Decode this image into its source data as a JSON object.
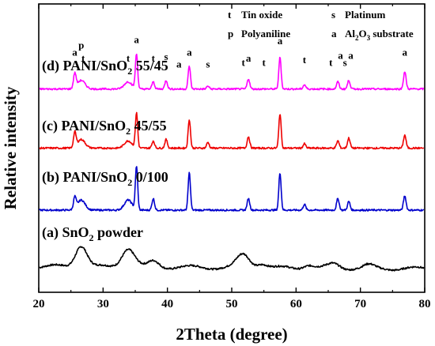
{
  "chart_data": {
    "type": "line",
    "xlabel": "2Theta (degree)",
    "ylabel": "Relative intensity",
    "xlim": [
      20,
      80
    ],
    "xticks": [
      "20",
      "30",
      "40",
      "50",
      "60",
      "70",
      "80"
    ],
    "legend": {
      "placement": "top-right",
      "entries": [
        {
          "symbol": "t",
          "text": "Tin oxide"
        },
        {
          "symbol": "s",
          "text": "Platinum"
        },
        {
          "symbol": "p",
          "text": "Polyaniline"
        },
        {
          "symbol": "a",
          "text": "Al",
          "sub": "2",
          "text2": "O",
          "sub2": "3",
          "text3": " substrate"
        }
      ]
    },
    "series": [
      {
        "name": "(a) SnO2 powder",
        "label_parts": [
          "(a) SnO",
          "2",
          " powder"
        ],
        "color": "#000000",
        "baseline": 0.09,
        "peaks": [
          [
            26.6,
            0.075,
            0.9
          ],
          [
            33.9,
            0.065,
            1.0
          ],
          [
            37.9,
            0.02,
            0.8
          ],
          [
            51.8,
            0.045,
            1.0
          ],
          [
            54.7,
            0.015,
            0.8
          ],
          [
            61.9,
            0.012,
            0.8
          ],
          [
            65.9,
            0.015,
            0.9
          ],
          [
            71.3,
            0.01,
            0.8
          ]
        ]
      },
      {
        "name": "(b) PANI/SnO2 0/100",
        "label_parts": [
          "(b) PANI/SnO",
          "2",
          " 0/100"
        ],
        "color": "#0000cc",
        "baseline": 0.285,
        "peaks": [
          [
            25.6,
            0.04,
            0.2
          ],
          [
            26.6,
            0.035,
            0.6
          ],
          [
            33.9,
            0.035,
            0.6
          ],
          [
            35.2,
            0.15,
            0.18
          ],
          [
            37.8,
            0.04,
            0.2
          ],
          [
            43.4,
            0.13,
            0.18
          ],
          [
            52.6,
            0.04,
            0.2
          ],
          [
            57.5,
            0.13,
            0.18
          ],
          [
            61.3,
            0.02,
            0.2
          ],
          [
            66.5,
            0.04,
            0.2
          ],
          [
            68.2,
            0.03,
            0.2
          ],
          [
            76.9,
            0.05,
            0.2
          ]
        ]
      },
      {
        "name": "(c) PANI/SnO2 45/55",
        "label_parts": [
          "(c) PANI/SnO",
          "2",
          " 45/55"
        ],
        "color": "#ee0000",
        "baseline": 0.5,
        "peaks": [
          [
            25.6,
            0.05,
            0.2
          ],
          [
            26.6,
            0.03,
            0.6
          ],
          [
            33.9,
            0.025,
            0.6
          ],
          [
            35.2,
            0.12,
            0.18
          ],
          [
            37.8,
            0.025,
            0.2
          ],
          [
            39.8,
            0.03,
            0.2
          ],
          [
            43.4,
            0.1,
            0.18
          ],
          [
            46.3,
            0.02,
            0.2
          ],
          [
            52.6,
            0.04,
            0.2
          ],
          [
            57.5,
            0.12,
            0.18
          ],
          [
            61.3,
            0.015,
            0.2
          ],
          [
            66.5,
            0.025,
            0.2
          ],
          [
            68.2,
            0.035,
            0.2
          ],
          [
            76.9,
            0.045,
            0.2
          ]
        ]
      },
      {
        "name": "(d) PANI/SnO2 55/45",
        "label_parts": [
          "(d) PANI/SnO",
          "2",
          " 55/45"
        ],
        "color": "#ff00ff",
        "baseline": 0.705,
        "peaks": [
          [
            25.6,
            0.05,
            0.2
          ],
          [
            26.6,
            0.03,
            0.6
          ],
          [
            33.9,
            0.025,
            0.6
          ],
          [
            35.2,
            0.12,
            0.18
          ],
          [
            37.8,
            0.025,
            0.2
          ],
          [
            39.8,
            0.03,
            0.2
          ],
          [
            43.4,
            0.08,
            0.18
          ],
          [
            46.3,
            0.01,
            0.2
          ],
          [
            52.6,
            0.035,
            0.2
          ],
          [
            57.5,
            0.11,
            0.18
          ],
          [
            61.3,
            0.015,
            0.2
          ],
          [
            66.5,
            0.025,
            0.2
          ],
          [
            68.2,
            0.03,
            0.2
          ],
          [
            76.9,
            0.06,
            0.2
          ]
        ]
      }
    ],
    "annotations": [
      {
        "text": "a",
        "x": 25.6,
        "y": 0.82
      },
      {
        "text": "p",
        "x": 26.6,
        "y": 0.845
      },
      {
        "text": "t",
        "x": 26.9,
        "y": 0.8
      },
      {
        "text": "t",
        "x": 33.9,
        "y": 0.8
      },
      {
        "text": "a",
        "x": 35.2,
        "y": 0.865
      },
      {
        "text": "t",
        "x": 37.8,
        "y": 0.8
      },
      {
        "text": "s",
        "x": 39.8,
        "y": 0.805
      },
      {
        "text": "a",
        "x": 41.8,
        "y": 0.78
      },
      {
        "text": "a",
        "x": 43.4,
        "y": 0.82
      },
      {
        "text": "s",
        "x": 46.3,
        "y": 0.78
      },
      {
        "text": "t",
        "x": 51.8,
        "y": 0.785
      },
      {
        "text": "a",
        "x": 52.6,
        "y": 0.8
      },
      {
        "text": "t",
        "x": 55.0,
        "y": 0.785
      },
      {
        "text": "a",
        "x": 57.5,
        "y": 0.86
      },
      {
        "text": "t",
        "x": 61.3,
        "y": 0.795
      },
      {
        "text": "t",
        "x": 65.4,
        "y": 0.785
      },
      {
        "text": "a",
        "x": 66.9,
        "y": 0.81
      },
      {
        "text": "s",
        "x": 67.6,
        "y": 0.785
      },
      {
        "text": "a",
        "x": 68.5,
        "y": 0.81
      },
      {
        "text": "a",
        "x": 76.9,
        "y": 0.82
      }
    ],
    "grid": false
  }
}
